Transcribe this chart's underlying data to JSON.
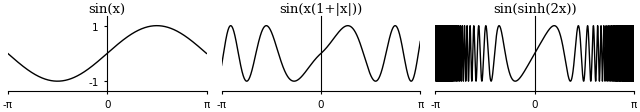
{
  "titles": [
    "sin(x)",
    "sin(x(1+|x|))",
    "sin(sinh(2x))"
  ],
  "xlim": [
    -3.14159265,
    3.14159265
  ],
  "ylim": [
    -1.35,
    1.35
  ],
  "xticks": [
    -3.14159265,
    0,
    3.14159265
  ],
  "xticklabels": [
    "-π",
    "0",
    "π"
  ],
  "yticks": [
    -1,
    1
  ],
  "yticklabels": [
    "-1",
    "1"
  ],
  "line_color": "#000000",
  "line_width": 1.0,
  "n_points": 8000,
  "fig_width": 6.4,
  "fig_height": 1.13,
  "dpi": 100,
  "title_fontsize": 9.5,
  "tick_fontsize": 7.5,
  "bg_color": "#ffffff"
}
